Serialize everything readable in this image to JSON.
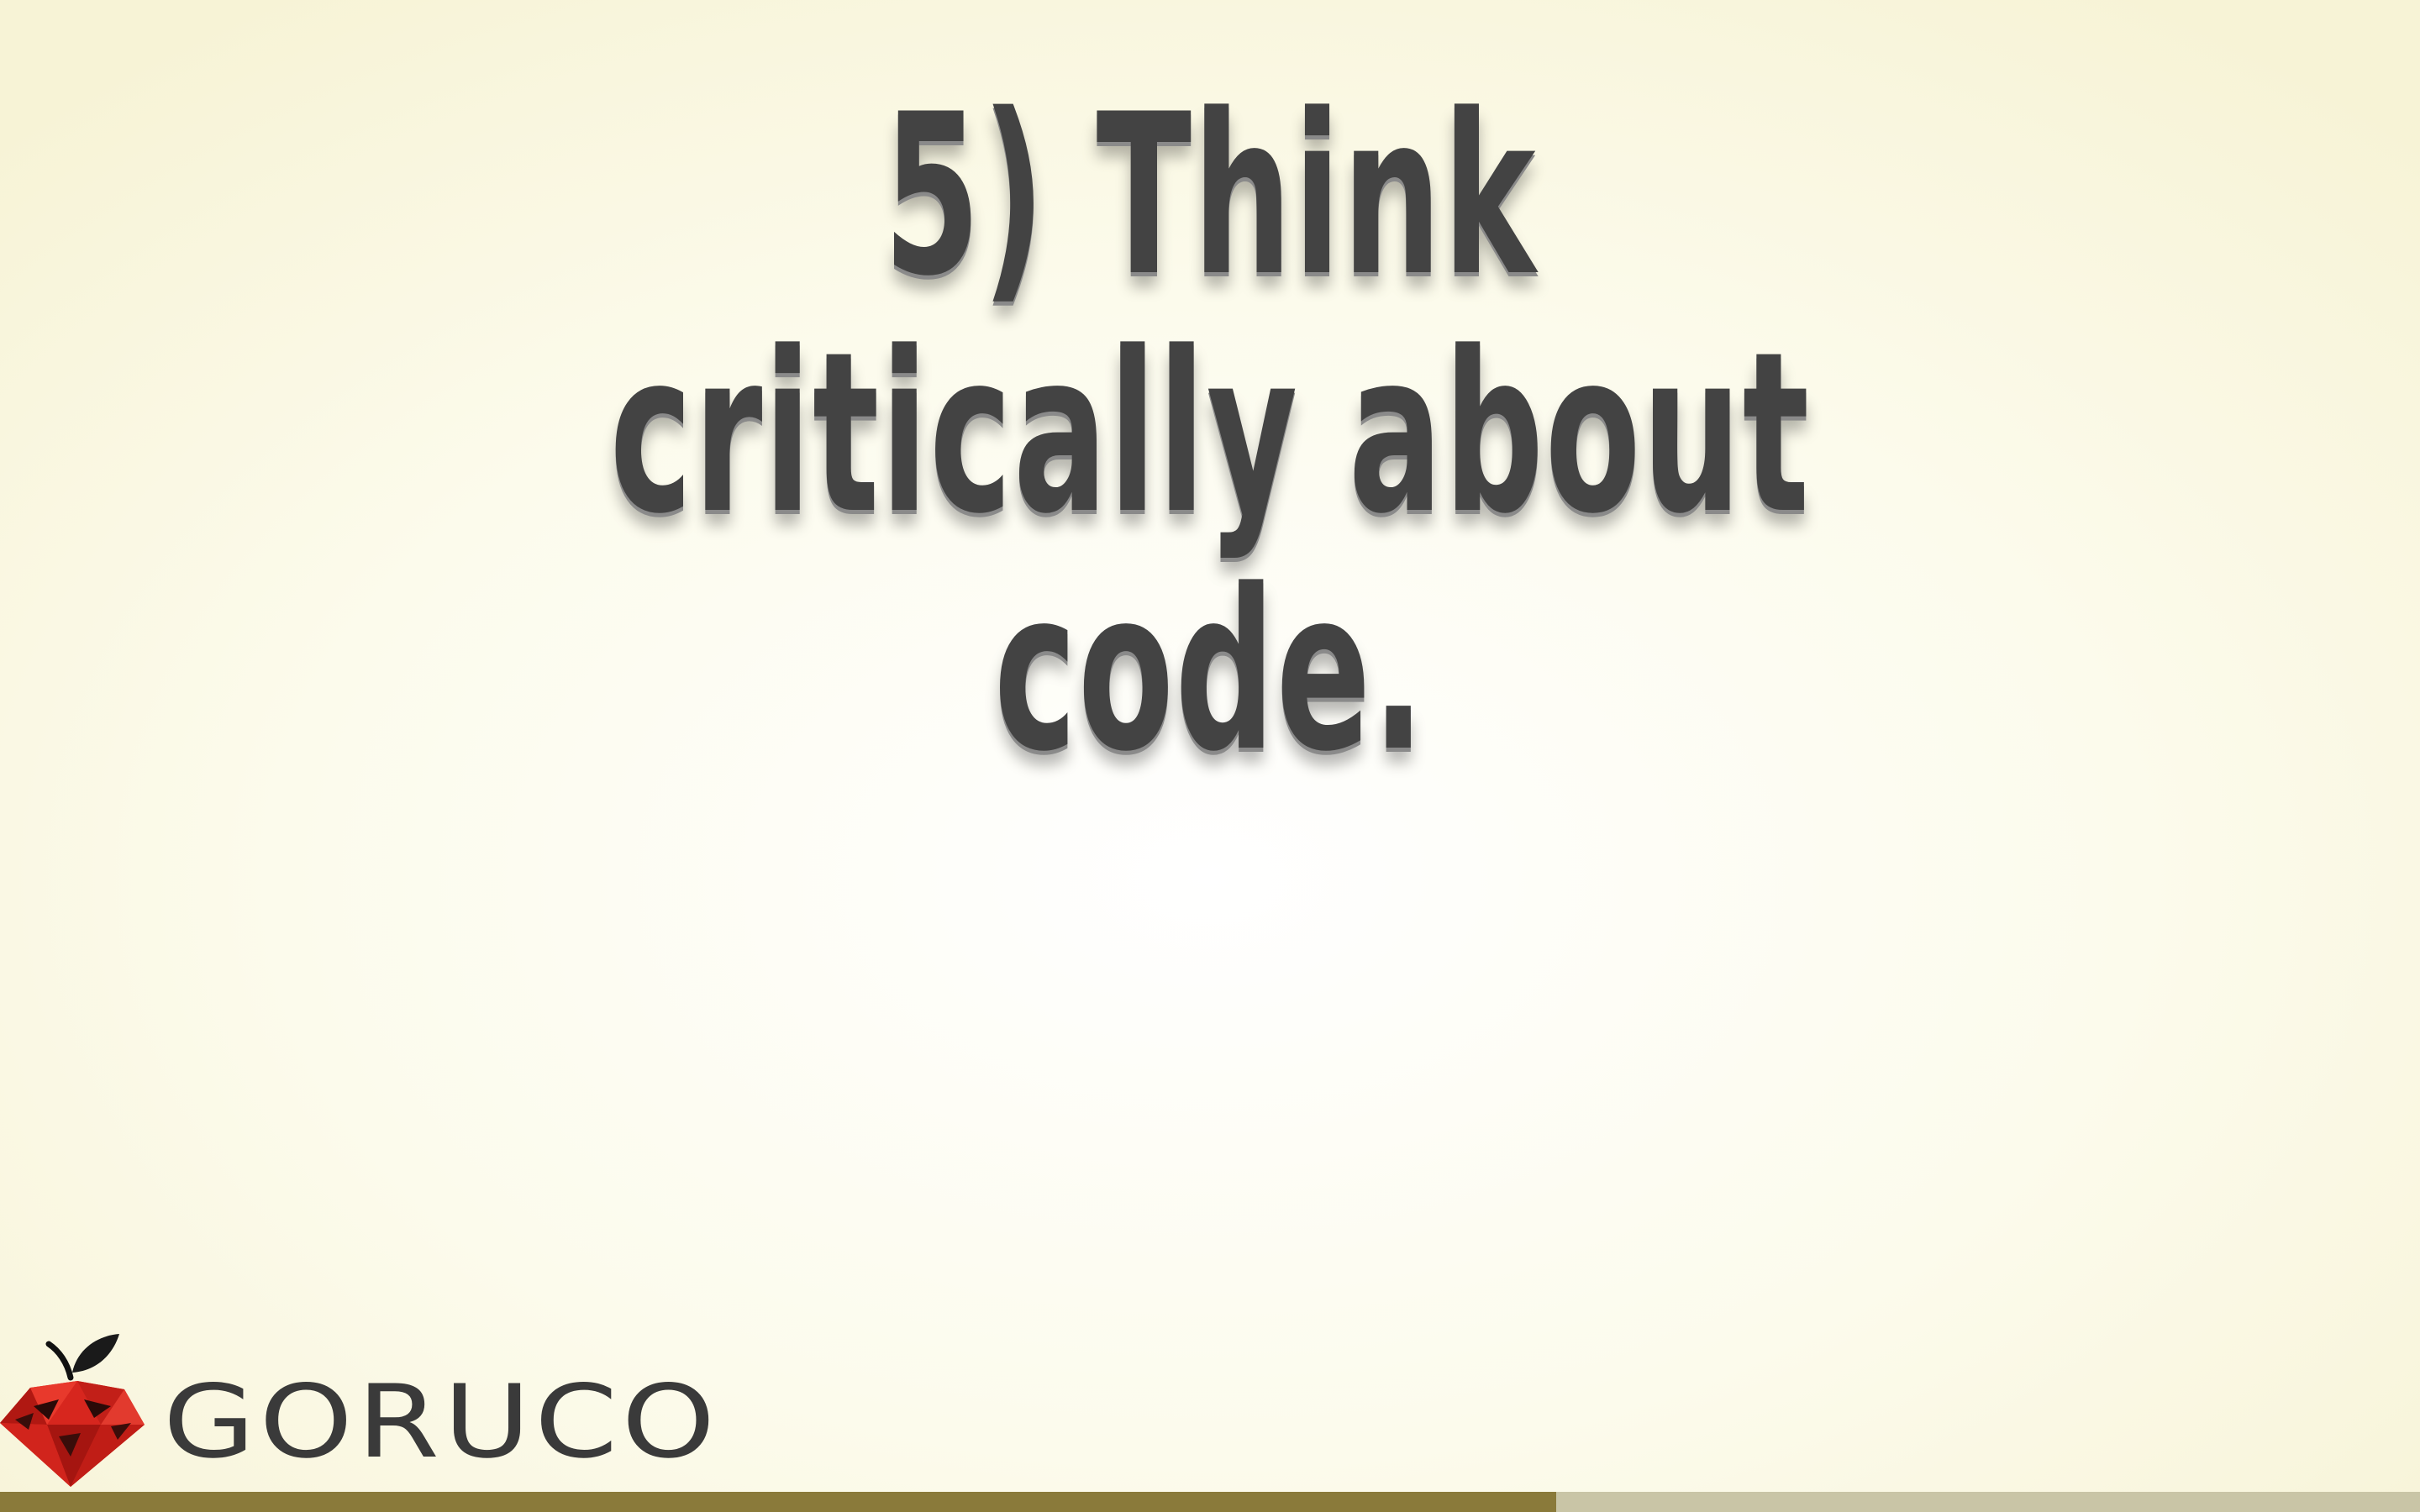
{
  "slide": {
    "title_lines": [
      "5) Think",
      "critically about",
      "code."
    ]
  },
  "logo": {
    "text": "GORUCO",
    "icon": "apple-gem-icon"
  },
  "progress": {
    "fraction": 0.643
  },
  "colors": {
    "title": "#434343",
    "logo_red": "#d7261e",
    "progress_fill": "#8a7a3a",
    "progress_track": "#c9c5a6"
  }
}
